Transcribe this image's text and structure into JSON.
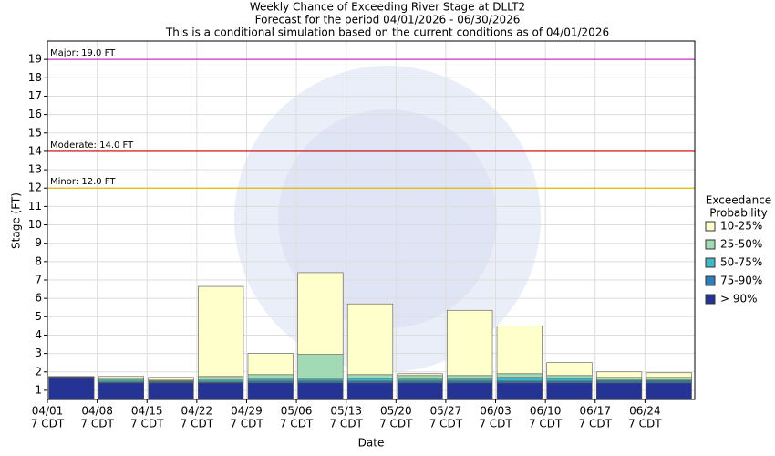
{
  "chart_data": {
    "type": "stacked-bar",
    "title": "Weekly Chance of Exceeding River Stage at DLLT2",
    "subtitle": "Forecast for the period 04/01/2026 - 06/30/2026",
    "subtitle2": "This is a conditional simulation based on the current conditions as of 04/01/2026",
    "x_label": "Date",
    "y_label": "Stage (FT)",
    "legend_title": [
      "Exceedance",
      "Probability"
    ],
    "categories": [
      "04/01",
      "04/08",
      "04/15",
      "04/22",
      "04/29",
      "05/06",
      "05/13",
      "05/20",
      "05/27",
      "06/03",
      "06/10",
      "06/17",
      "06/24"
    ],
    "category_sublabels": [
      "7 CDT",
      "7 CDT",
      "7 CDT",
      "7 CDT",
      "7 CDT",
      "7 CDT",
      "7 CDT",
      "7 CDT",
      "7 CDT",
      "7 CDT",
      "7 CDT",
      "7 CDT",
      "7 CDT"
    ],
    "series": [
      {
        "name": "> 90%",
        "color": "#253494",
        "values": [
          1.15,
          0.9,
          0.9,
          0.9,
          0.9,
          0.9,
          0.9,
          0.9,
          0.9,
          0.9,
          0.9,
          0.9,
          0.9
        ]
      },
      {
        "name": "75-90%",
        "color": "#2c7fb8",
        "values": [
          0.03,
          0.05,
          0.05,
          0.05,
          0.1,
          0.1,
          0.1,
          0.1,
          0.1,
          0.1,
          0.1,
          0.1,
          0.1
        ]
      },
      {
        "name": "50-75%",
        "color": "#41b6c4",
        "values": [
          0.02,
          0.1,
          0.05,
          0.1,
          0.1,
          0.1,
          0.15,
          0.1,
          0.1,
          0.2,
          0.15,
          0.05,
          0.05
        ]
      },
      {
        "name": "25-50%",
        "color": "#a1dab4",
        "values": [
          0.02,
          0.1,
          0.05,
          0.2,
          0.25,
          1.35,
          0.2,
          0.2,
          0.2,
          0.2,
          0.15,
          0.15,
          0.15
        ]
      },
      {
        "name": "10-25%",
        "color": "#ffffcc",
        "values": [
          0.03,
          0.1,
          0.15,
          4.9,
          1.15,
          4.45,
          3.85,
          0.1,
          3.55,
          2.6,
          0.7,
          0.3,
          0.25
        ]
      }
    ],
    "flood_levels": [
      {
        "label": "Major: 19.0 FT",
        "value": 19,
        "color": "#cc33cc"
      },
      {
        "label": "Moderate: 14.0 FT",
        "value": 14,
        "color": "#cc0000"
      },
      {
        "label": "Minor: 12.0 FT",
        "value": 12,
        "color": "#e6b800"
      }
    ],
    "ylim": [
      0.5,
      20
    ],
    "yticks": [
      1,
      2,
      3,
      4,
      5,
      6,
      7,
      8,
      9,
      10,
      11,
      12,
      13,
      14,
      15,
      16,
      17,
      18,
      19
    ],
    "grid": true
  }
}
